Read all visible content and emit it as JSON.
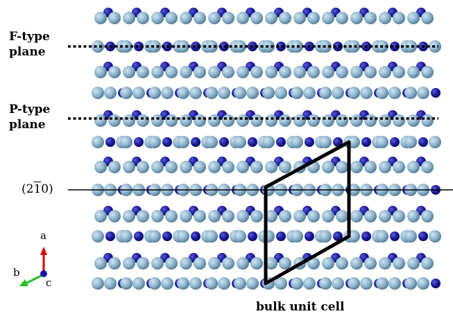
{
  "labels": {
    "f_plane_line1": "F-type",
    "f_plane_line2": "plane",
    "p_plane_line1": "P-type",
    "p_plane_line2": "plane",
    "miller_open": "(2",
    "miller_bar": "1",
    "miller_close": "0)",
    "unit_cell": "bulk unit cell"
  },
  "axes": {
    "a": "a",
    "b": "b",
    "c": "c"
  },
  "colors": {
    "light_atom": "#8fb6cf",
    "light_atom_edge": "#4f7892",
    "dark_atom": "#1c1c9c",
    "dark_atom_edge": "#0a0a5a",
    "axis_a": "#d40000",
    "axis_b": "#22c022",
    "axis_c": "#1818a8",
    "lines": "#000000"
  }
}
